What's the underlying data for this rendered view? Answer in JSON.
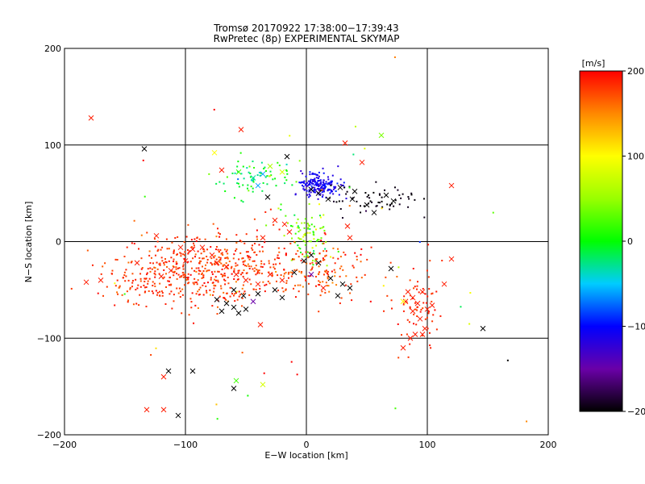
{
  "header": {
    "title_line1": "Tromsø 20170922 17:38:00−17:39:43",
    "title_line2": "RwPretec (8p) EXPERIMENTAL SKYMAP"
  },
  "colors": {
    "background": "#ffffff",
    "axes": "#000000",
    "colorbar_top": "#ff0000",
    "colorbar_bottom": "#000000"
  },
  "chart_data": {
    "type": "scatter",
    "title": "Tromsø 20170922 17:38:00−17:39:43",
    "subtitle": "RwPretec (8p) EXPERIMENTAL SKYMAP",
    "xlabel": "E−W location [km]",
    "ylabel": "N−S location [km]",
    "xlim": [
      -200,
      200
    ],
    "ylim": [
      -200,
      200
    ],
    "xticks": [
      -200,
      -100,
      0,
      100,
      200
    ],
    "yticks": [
      -200,
      -100,
      0,
      100,
      200
    ],
    "xtick_labels": [
      "−200",
      "−100",
      "0",
      "100",
      "200"
    ],
    "ytick_labels": [
      "−200",
      "−100",
      "0",
      "100",
      "200"
    ],
    "grid": true,
    "marker_types": [
      "x",
      "dot"
    ],
    "colorbar": {
      "label": "[m/s]",
      "range": [
        -200,
        200
      ],
      "ticks": [
        200,
        100,
        0,
        -100,
        -200
      ],
      "tick_labels": [
        "200",
        "100",
        "0",
        "−100",
        "−200"
      ]
    },
    "points_x_markers": [
      {
        "x": -178,
        "y": 128,
        "v": 190
      },
      {
        "x": -54,
        "y": 116,
        "v": 190
      },
      {
        "x": -134,
        "y": 96,
        "v": -200
      },
      {
        "x": 32,
        "y": 102,
        "v": 190
      },
      {
        "x": 46,
        "y": 82,
        "v": 190
      },
      {
        "x": 120,
        "y": 58,
        "v": 190
      },
      {
        "x": -76,
        "y": 92,
        "v": 100
      },
      {
        "x": -70,
        "y": 74,
        "v": 190
      },
      {
        "x": -56,
        "y": 72,
        "v": 20
      },
      {
        "x": -44,
        "y": 66,
        "v": -30
      },
      {
        "x": -36,
        "y": 70,
        "v": -60
      },
      {
        "x": -30,
        "y": 78,
        "v": 60
      },
      {
        "x": -20,
        "y": 72,
        "v": 80
      },
      {
        "x": -40,
        "y": 58,
        "v": -60
      },
      {
        "x": -32,
        "y": 46,
        "v": -200
      },
      {
        "x": -16,
        "y": 88,
        "v": -200
      },
      {
        "x": 4,
        "y": 54,
        "v": -200
      },
      {
        "x": 10,
        "y": 50,
        "v": -200
      },
      {
        "x": 18,
        "y": 44,
        "v": -200
      },
      {
        "x": 28,
        "y": 56,
        "v": -200
      },
      {
        "x": 38,
        "y": 44,
        "v": -200
      },
      {
        "x": 40,
        "y": 52,
        "v": -200
      },
      {
        "x": 50,
        "y": 38,
        "v": -200
      },
      {
        "x": 56,
        "y": 30,
        "v": -200
      },
      {
        "x": 66,
        "y": 48,
        "v": -200
      },
      {
        "x": 72,
        "y": 42,
        "v": -200
      },
      {
        "x": 62,
        "y": 110,
        "v": 40
      },
      {
        "x": 8,
        "y": 60,
        "v": -100
      },
      {
        "x": 14,
        "y": 58,
        "v": -100
      },
      {
        "x": -26,
        "y": 22,
        "v": 190
      },
      {
        "x": -18,
        "y": 18,
        "v": 190
      },
      {
        "x": 34,
        "y": 16,
        "v": 190
      },
      {
        "x": 36,
        "y": 4,
        "v": 190
      },
      {
        "x": -36,
        "y": 4,
        "v": 190
      },
      {
        "x": -14,
        "y": 10,
        "v": 190
      },
      {
        "x": -124,
        "y": 6,
        "v": 190
      },
      {
        "x": -140,
        "y": -22,
        "v": 190
      },
      {
        "x": -170,
        "y": -40,
        "v": 190
      },
      {
        "x": -182,
        "y": -42,
        "v": 190
      },
      {
        "x": -120,
        "y": -36,
        "v": 190
      },
      {
        "x": -112,
        "y": -30,
        "v": 190
      },
      {
        "x": -100,
        "y": -20,
        "v": 190
      },
      {
        "x": -104,
        "y": -6,
        "v": 190
      },
      {
        "x": -94,
        "y": -8,
        "v": 190
      },
      {
        "x": -86,
        "y": -6,
        "v": 190
      },
      {
        "x": -78,
        "y": -14,
        "v": 190
      },
      {
        "x": -74,
        "y": -22,
        "v": 190
      },
      {
        "x": -66,
        "y": -26,
        "v": 190
      },
      {
        "x": -58,
        "y": -34,
        "v": 190
      },
      {
        "x": -50,
        "y": -40,
        "v": 190
      },
      {
        "x": -40,
        "y": -44,
        "v": 190
      },
      {
        "x": -30,
        "y": -34,
        "v": 190
      },
      {
        "x": -20,
        "y": -40,
        "v": 190
      },
      {
        "x": -74,
        "y": -60,
        "v": -200
      },
      {
        "x": -66,
        "y": -64,
        "v": -200
      },
      {
        "x": -60,
        "y": -68,
        "v": -200
      },
      {
        "x": -70,
        "y": -72,
        "v": -200
      },
      {
        "x": -56,
        "y": -74,
        "v": -200
      },
      {
        "x": -50,
        "y": -70,
        "v": -200
      },
      {
        "x": -44,
        "y": -62,
        "v": -150
      },
      {
        "x": -40,
        "y": -54,
        "v": -200
      },
      {
        "x": -60,
        "y": -50,
        "v": -200
      },
      {
        "x": -52,
        "y": -56,
        "v": -200
      },
      {
        "x": -20,
        "y": -58,
        "v": -200
      },
      {
        "x": -26,
        "y": -50,
        "v": -200
      },
      {
        "x": -10,
        "y": -32,
        "v": -200
      },
      {
        "x": -2,
        "y": -20,
        "v": -200
      },
      {
        "x": 4,
        "y": -14,
        "v": -200
      },
      {
        "x": 10,
        "y": -22,
        "v": -200
      },
      {
        "x": 20,
        "y": -38,
        "v": -200
      },
      {
        "x": 30,
        "y": -44,
        "v": -200
      },
      {
        "x": 36,
        "y": -48,
        "v": -200
      },
      {
        "x": 26,
        "y": -56,
        "v": -200
      },
      {
        "x": 14,
        "y": -48,
        "v": 190
      },
      {
        "x": 70,
        "y": -28,
        "v": -200
      },
      {
        "x": 4,
        "y": -34,
        "v": -150
      },
      {
        "x": -38,
        "y": -86,
        "v": 190
      },
      {
        "x": 84,
        "y": -52,
        "v": 190
      },
      {
        "x": 88,
        "y": -58,
        "v": 190
      },
      {
        "x": 96,
        "y": -52,
        "v": 190
      },
      {
        "x": 82,
        "y": -62,
        "v": 190
      },
      {
        "x": 92,
        "y": -64,
        "v": 190
      },
      {
        "x": 100,
        "y": -70,
        "v": 190
      },
      {
        "x": 88,
        "y": -72,
        "v": 190
      },
      {
        "x": 94,
        "y": -80,
        "v": 190
      },
      {
        "x": 104,
        "y": -66,
        "v": 190
      },
      {
        "x": 98,
        "y": -90,
        "v": 190
      },
      {
        "x": 90,
        "y": -96,
        "v": 190
      },
      {
        "x": 86,
        "y": -100,
        "v": 190
      },
      {
        "x": 80,
        "y": -110,
        "v": 190
      },
      {
        "x": 96,
        "y": -96,
        "v": 190
      },
      {
        "x": 114,
        "y": -44,
        "v": 190
      },
      {
        "x": 120,
        "y": -18,
        "v": 190
      },
      {
        "x": 146,
        "y": -90,
        "v": -200
      },
      {
        "x": 80,
        "y": -62,
        "v": 100
      },
      {
        "x": -114,
        "y": -134,
        "v": -200
      },
      {
        "x": -118,
        "y": -140,
        "v": 190
      },
      {
        "x": -94,
        "y": -134,
        "v": -200
      },
      {
        "x": -58,
        "y": -144,
        "v": 20
      },
      {
        "x": -36,
        "y": -148,
        "v": 80
      },
      {
        "x": -60,
        "y": -152,
        "v": -200
      },
      {
        "x": -132,
        "y": -174,
        "v": 190
      },
      {
        "x": -118,
        "y": -174,
        "v": 190
      },
      {
        "x": -106,
        "y": -180,
        "v": -200
      }
    ],
    "point_clusters": [
      {
        "note": "dense blue cluster",
        "cx": 10,
        "cy": 58,
        "sx": 9,
        "sy": 7,
        "n": 170,
        "v_center": -110,
        "v_spread": 20
      },
      {
        "note": "cyan band",
        "cx": -42,
        "cy": 66,
        "sx": 18,
        "sy": 9,
        "n": 70,
        "v_center": -10,
        "v_spread": 40
      },
      {
        "note": "black trailing",
        "cx": 52,
        "cy": 44,
        "sx": 20,
        "sy": 8,
        "n": 60,
        "v_center": -195,
        "v_spread": 10
      },
      {
        "note": "green/yellow central",
        "cx": 0,
        "cy": 4,
        "sx": 10,
        "sy": 14,
        "n": 90,
        "v_center": 40,
        "v_spread": 60
      },
      {
        "note": "red main band",
        "cx": -80,
        "cy": -28,
        "sx": 38,
        "sy": 18,
        "n": 520,
        "v_center": 180,
        "v_spread": 25
      },
      {
        "note": "red east band",
        "cx": 12,
        "cy": -30,
        "sx": 22,
        "sy": 16,
        "n": 120,
        "v_center": 175,
        "v_spread": 30
      },
      {
        "note": "red south-east",
        "cx": 92,
        "cy": -72,
        "sx": 10,
        "sy": 18,
        "n": 70,
        "v_center": 185,
        "v_spread": 15
      },
      {
        "note": "red west patch",
        "cx": -130,
        "cy": -40,
        "sx": 16,
        "sy": 14,
        "n": 60,
        "v_center": 185,
        "v_spread": 15
      },
      {
        "note": "sparse scattered",
        "cx": 0,
        "cy": 0,
        "sx": 120,
        "sy": 110,
        "n": 60,
        "v_center": 100,
        "v_spread": 200
      }
    ],
    "seed": 17
  }
}
